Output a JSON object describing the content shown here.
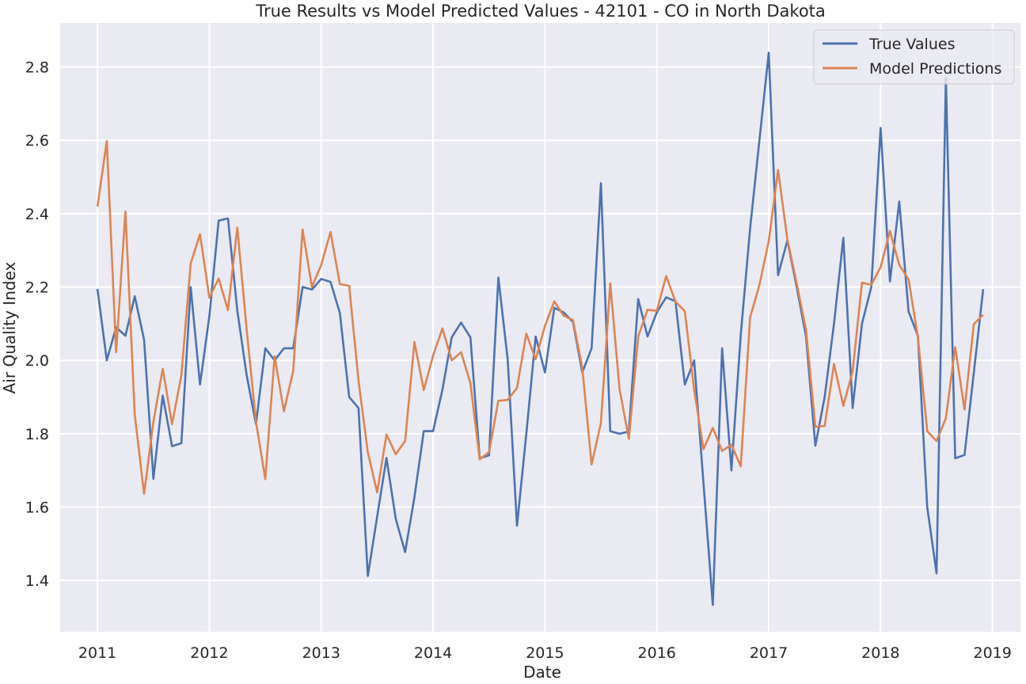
{
  "chart_data": {
    "type": "line",
    "title": "True Results vs Model Predicted Values - 42101 - CO in North Dakota",
    "xlabel": "Date",
    "ylabel": "Air Quality Index",
    "x_tick_labels": [
      "2011",
      "2012",
      "2013",
      "2014",
      "2015",
      "2016",
      "2017",
      "2018",
      "2019"
    ],
    "y_ticks": [
      1.4,
      1.6,
      1.8,
      2.0,
      2.2,
      2.4,
      2.6,
      2.8
    ],
    "y_tick_labels": [
      "1.4",
      "1.6",
      "1.8",
      "2.0",
      "2.2",
      "2.4",
      "2.6",
      "2.8"
    ],
    "xlim": [
      "2010-09",
      "2019-04"
    ],
    "ylim": [
      1.26,
      2.92
    ],
    "grid": true,
    "legend_position": "top-right",
    "colors": {
      "background": "#EAEAF2",
      "grid": "#FFFFFF",
      "true": "#4C72B0",
      "pred": "#DD8452"
    },
    "x": [
      "2011-01",
      "2011-02",
      "2011-03",
      "2011-04",
      "2011-05",
      "2011-06",
      "2011-07",
      "2011-08",
      "2011-09",
      "2011-10",
      "2011-11",
      "2011-12",
      "2012-01",
      "2012-02",
      "2012-03",
      "2012-04",
      "2012-05",
      "2012-06",
      "2012-07",
      "2012-08",
      "2012-09",
      "2012-10",
      "2012-11",
      "2012-12",
      "2013-01",
      "2013-02",
      "2013-03",
      "2013-04",
      "2013-05",
      "2013-06",
      "2013-07",
      "2013-08",
      "2013-09",
      "2013-10",
      "2013-11",
      "2013-12",
      "2014-01",
      "2014-02",
      "2014-03",
      "2014-04",
      "2014-05",
      "2014-06",
      "2014-07",
      "2014-08",
      "2014-09",
      "2014-10",
      "2014-11",
      "2014-12",
      "2015-01",
      "2015-02",
      "2015-03",
      "2015-04",
      "2015-05",
      "2015-06",
      "2015-07",
      "2015-08",
      "2015-09",
      "2015-10",
      "2015-11",
      "2015-12",
      "2016-01",
      "2016-02",
      "2016-03",
      "2016-04",
      "2016-05",
      "2016-06",
      "2016-07",
      "2016-08",
      "2016-09",
      "2016-10",
      "2016-11",
      "2016-12",
      "2017-01",
      "2017-02",
      "2017-03",
      "2017-04",
      "2017-05",
      "2017-06",
      "2017-07",
      "2017-08",
      "2017-09",
      "2017-10",
      "2017-11",
      "2017-12",
      "2018-01",
      "2018-02",
      "2018-03",
      "2018-04",
      "2018-05",
      "2018-06",
      "2018-07",
      "2018-08",
      "2018-09",
      "2018-10",
      "2018-11",
      "2018-12"
    ],
    "series": [
      {
        "name": "True Values",
        "color": "#4C72B0",
        "values": [
          2.195,
          2.0,
          2.09,
          2.067,
          2.175,
          2.056,
          1.677,
          1.904,
          1.766,
          1.774,
          2.2,
          1.934,
          2.12,
          2.381,
          2.387,
          2.136,
          1.96,
          1.826,
          2.033,
          2.0,
          2.033,
          2.033,
          2.2,
          2.193,
          2.222,
          2.214,
          2.129,
          1.9,
          1.87,
          1.412,
          1.574,
          1.734,
          1.567,
          1.477,
          1.627,
          1.807,
          1.807,
          1.92,
          2.063,
          2.103,
          2.063,
          1.733,
          1.741,
          2.226,
          2.003,
          1.549,
          1.8,
          2.065,
          1.967,
          2.143,
          2.131,
          2.105,
          1.967,
          2.033,
          2.483,
          1.807,
          1.8,
          1.806,
          2.167,
          2.065,
          2.131,
          2.172,
          2.161,
          1.934,
          2.0,
          1.666,
          1.333,
          2.033,
          1.7,
          2.07,
          2.359,
          2.6,
          2.839,
          2.232,
          2.327,
          2.2,
          2.065,
          1.767,
          1.9,
          2.1,
          2.334,
          1.87,
          2.1,
          2.2,
          2.634,
          2.215,
          2.433,
          2.133,
          2.067,
          1.6,
          1.419,
          2.77,
          1.733,
          1.742,
          1.967,
          2.194
        ]
      },
      {
        "name": "Model Predictions",
        "color": "#DD8452",
        "values": [
          2.419,
          2.598,
          2.022,
          2.406,
          1.852,
          1.636,
          1.832,
          1.977,
          1.826,
          1.959,
          2.264,
          2.344,
          2.171,
          2.223,
          2.137,
          2.362,
          2.085,
          1.833,
          1.676,
          2.011,
          1.861,
          1.972,
          2.357,
          2.2,
          2.26,
          2.35,
          2.208,
          2.203,
          1.945,
          1.749,
          1.64,
          1.798,
          1.744,
          1.78,
          2.05,
          1.919,
          2.013,
          2.087,
          2.0,
          2.022,
          1.938,
          1.73,
          1.75,
          1.89,
          1.892,
          1.925,
          2.073,
          2.003,
          2.094,
          2.161,
          2.122,
          2.11,
          1.98,
          1.716,
          1.829,
          2.21,
          1.921,
          1.786,
          2.065,
          2.138,
          2.135,
          2.23,
          2.16,
          2.134,
          1.92,
          1.758,
          1.816,
          1.753,
          1.77,
          1.711,
          2.117,
          2.205,
          2.325,
          2.519,
          2.33,
          2.21,
          2.083,
          1.819,
          1.821,
          1.99,
          1.876,
          1.97,
          2.212,
          2.206,
          2.254,
          2.353,
          2.26,
          2.221,
          2.063,
          1.807,
          1.78,
          1.842,
          2.036,
          1.866,
          2.099,
          2.124
        ]
      }
    ]
  }
}
